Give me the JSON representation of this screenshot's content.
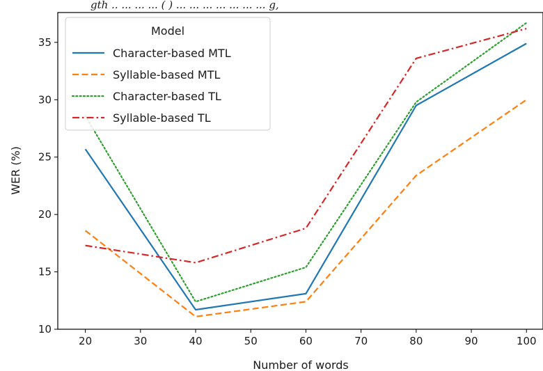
{
  "caption_fragment": "gth  ..  ...  ...  ...  (  )  ...  ...  ...  ...  ...  ...  ...  g,",
  "chart_data": {
    "type": "line",
    "x": [
      20,
      40,
      60,
      80,
      100
    ],
    "xlabel": "Number of words",
    "ylabel": "WER (%)",
    "xlim": [
      15,
      103
    ],
    "ylim": [
      10,
      37.6
    ],
    "xticks": [
      20,
      30,
      40,
      50,
      60,
      70,
      80,
      90,
      100
    ],
    "yticks": [
      10,
      15,
      20,
      25,
      30,
      35
    ],
    "grid": false,
    "legend": {
      "title": "Model",
      "placement": "top-left"
    },
    "series": [
      {
        "name": "Character-based MTL",
        "values": [
          25.7,
          11.7,
          13.1,
          29.5,
          34.9
        ],
        "color": "#1f77b4",
        "dash": "solid"
      },
      {
        "name": "Syllable-based MTL",
        "values": [
          18.6,
          11.1,
          12.4,
          23.4,
          30.0
        ],
        "color": "#ff7f0e",
        "dash": "dashed"
      },
      {
        "name": "Character-based TL",
        "values": [
          28.6,
          12.4,
          15.4,
          29.8,
          36.7
        ],
        "color": "#2ca02c",
        "dash": "dotted"
      },
      {
        "name": "Syllable-based TL",
        "values": [
          17.3,
          15.8,
          18.8,
          33.6,
          36.2
        ],
        "color": "#d62728",
        "dash": "dashdot"
      }
    ]
  }
}
